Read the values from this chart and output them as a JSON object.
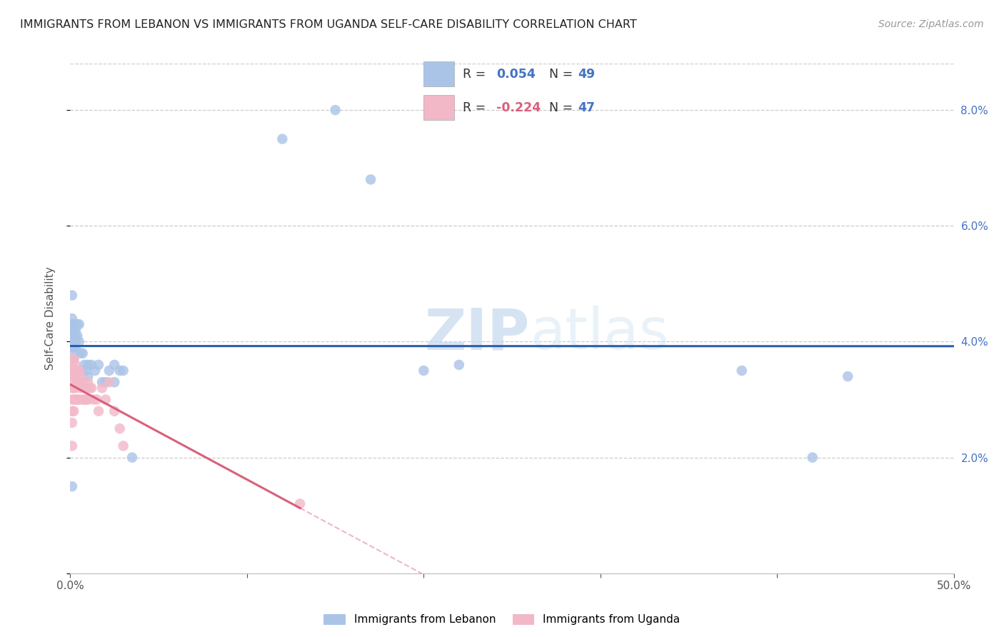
{
  "title": "IMMIGRANTS FROM LEBANON VS IMMIGRANTS FROM UGANDA SELF-CARE DISABILITY CORRELATION CHART",
  "source": "Source: ZipAtlas.com",
  "ylabel": "Self-Care Disability",
  "xlim": [
    0.0,
    0.5
  ],
  "ylim": [
    0.0,
    0.088
  ],
  "lebanon_color": "#aac4e8",
  "uganda_color": "#f2b8c8",
  "lebanon_line_color": "#2b5fad",
  "uganda_line_color": "#d9607a",
  "lebanon_R": 0.054,
  "lebanon_N": 49,
  "uganda_R": -0.224,
  "uganda_N": 47,
  "lebanon_label": "Immigrants from Lebanon",
  "uganda_label": "Immigrants from Uganda",
  "watermark_zip": "ZIP",
  "watermark_atlas": "atlas",
  "lebanon_x": [
    0.001,
    0.001,
    0.001,
    0.001,
    0.001,
    0.001,
    0.001,
    0.001,
    0.002,
    0.002,
    0.002,
    0.002,
    0.002,
    0.002,
    0.002,
    0.003,
    0.003,
    0.003,
    0.003,
    0.004,
    0.004,
    0.005,
    0.005,
    0.006,
    0.006,
    0.007,
    0.008,
    0.009,
    0.01,
    0.01,
    0.012,
    0.014,
    0.016,
    0.018,
    0.02,
    0.022,
    0.025,
    0.025,
    0.028,
    0.03,
    0.035,
    0.12,
    0.15,
    0.17,
    0.2,
    0.22,
    0.38,
    0.42,
    0.44
  ],
  "lebanon_y": [
    0.048,
    0.044,
    0.043,
    0.042,
    0.041,
    0.04,
    0.039,
    0.015,
    0.043,
    0.042,
    0.041,
    0.04,
    0.039,
    0.038,
    0.037,
    0.042,
    0.041,
    0.04,
    0.039,
    0.043,
    0.041,
    0.043,
    0.04,
    0.038,
    0.035,
    0.038,
    0.036,
    0.035,
    0.036,
    0.034,
    0.036,
    0.035,
    0.036,
    0.033,
    0.033,
    0.035,
    0.036,
    0.033,
    0.035,
    0.035,
    0.02,
    0.075,
    0.08,
    0.068,
    0.035,
    0.036,
    0.035,
    0.02,
    0.034
  ],
  "uganda_x": [
    0.001,
    0.001,
    0.001,
    0.001,
    0.001,
    0.001,
    0.001,
    0.001,
    0.001,
    0.001,
    0.002,
    0.002,
    0.002,
    0.002,
    0.002,
    0.002,
    0.003,
    0.003,
    0.003,
    0.003,
    0.004,
    0.004,
    0.004,
    0.005,
    0.005,
    0.005,
    0.006,
    0.006,
    0.007,
    0.007,
    0.008,
    0.008,
    0.009,
    0.01,
    0.01,
    0.011,
    0.012,
    0.013,
    0.015,
    0.016,
    0.018,
    0.02,
    0.022,
    0.025,
    0.028,
    0.03,
    0.13
  ],
  "uganda_y": [
    0.037,
    0.036,
    0.035,
    0.034,
    0.033,
    0.032,
    0.03,
    0.028,
    0.026,
    0.022,
    0.037,
    0.035,
    0.034,
    0.032,
    0.03,
    0.028,
    0.036,
    0.034,
    0.032,
    0.03,
    0.035,
    0.033,
    0.03,
    0.035,
    0.033,
    0.03,
    0.034,
    0.032,
    0.033,
    0.03,
    0.032,
    0.03,
    0.03,
    0.033,
    0.03,
    0.032,
    0.032,
    0.03,
    0.03,
    0.028,
    0.032,
    0.03,
    0.033,
    0.028,
    0.025,
    0.022,
    0.012
  ]
}
